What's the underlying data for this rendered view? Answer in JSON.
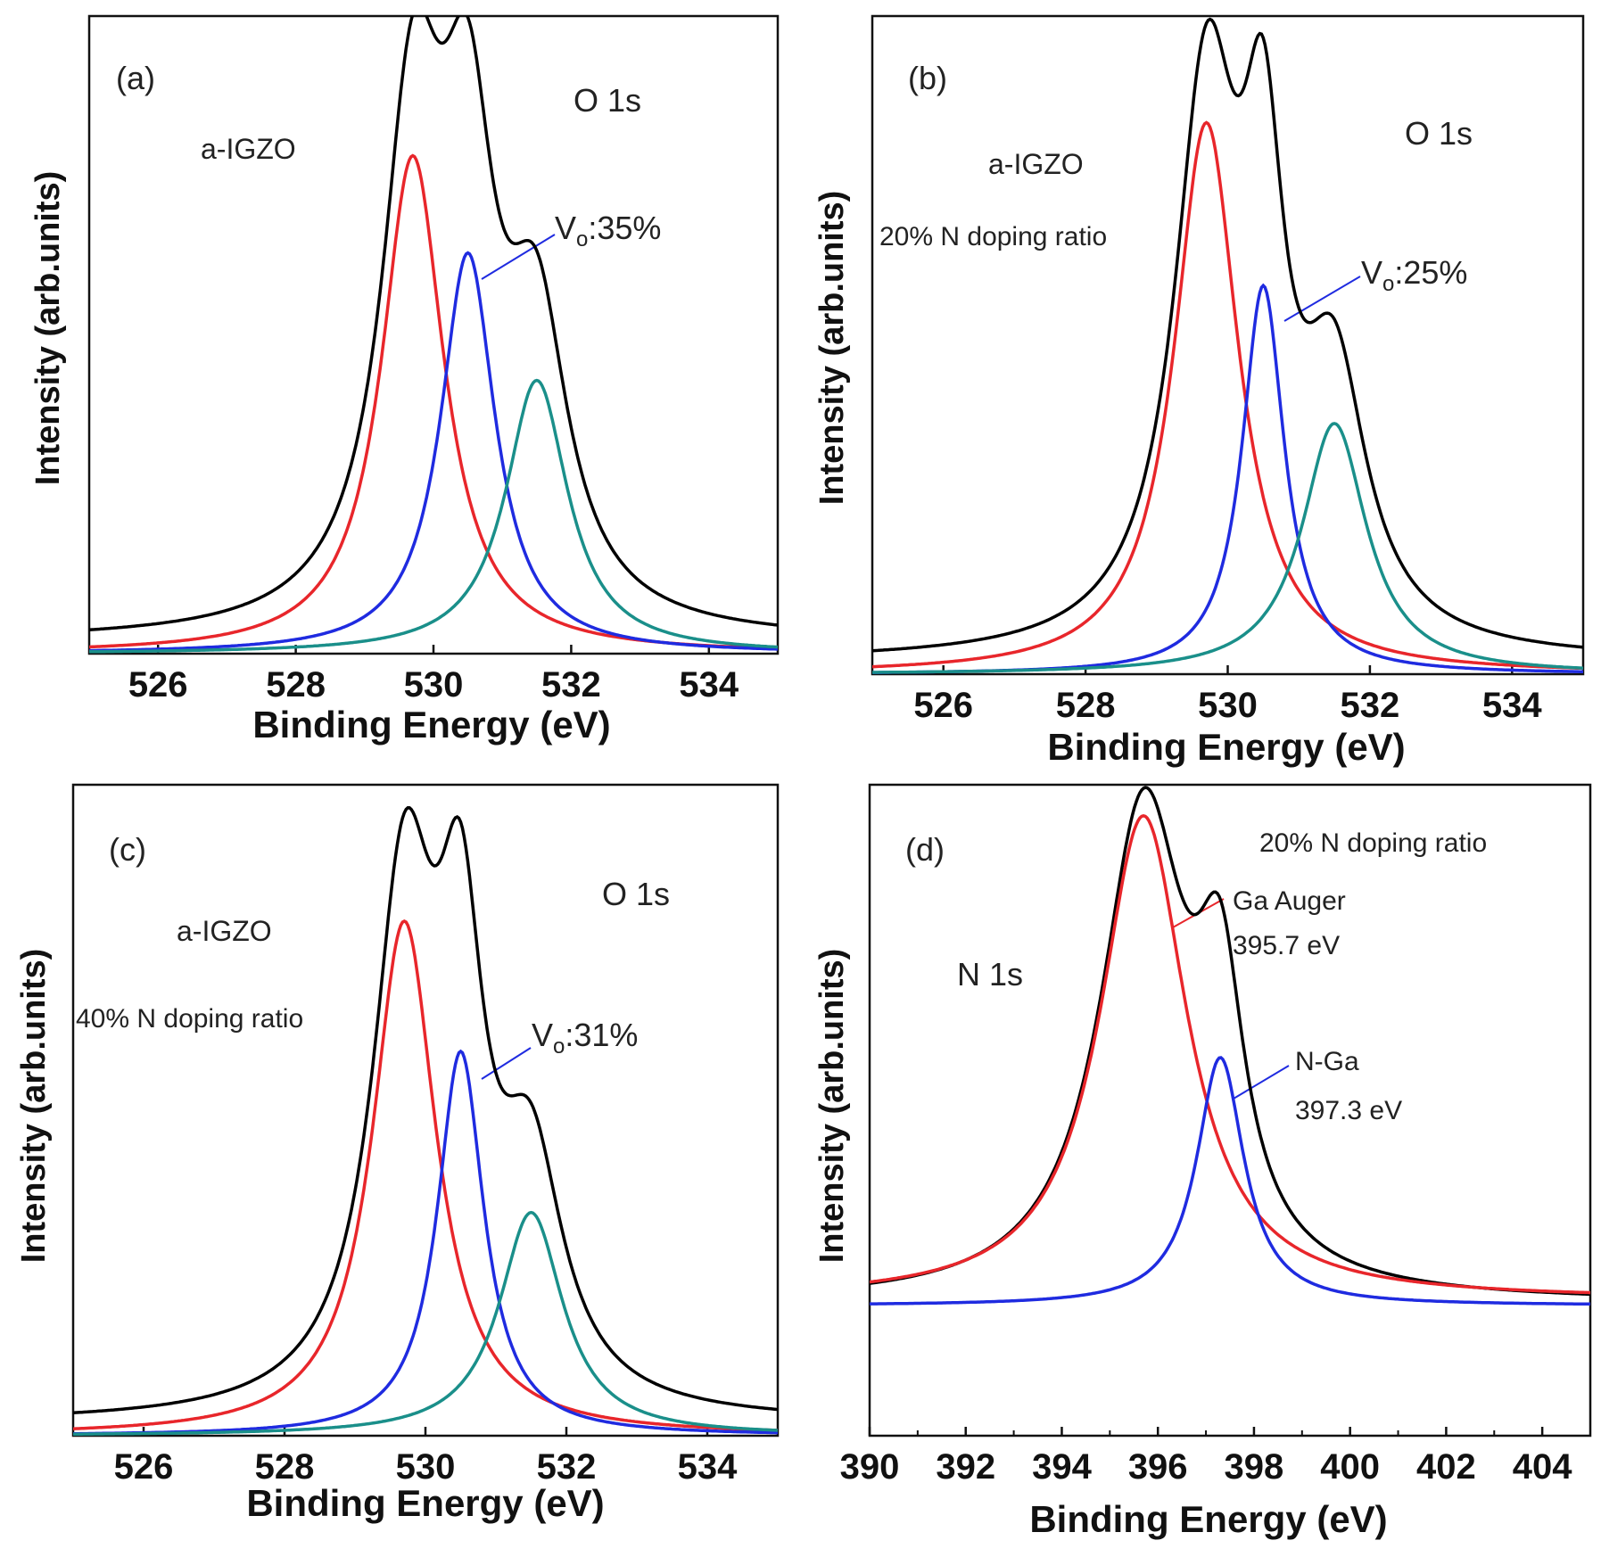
{
  "chart_data": [
    {
      "type": "line",
      "panel": "(a)",
      "xlabel": "Binding Energy (eV)",
      "ylabel": "Intensity (arb.units)",
      "xlim": [
        525,
        535
      ],
      "xticks": [
        526,
        528,
        530,
        532,
        534
      ],
      "xtick_labels": [
        "526",
        "528",
        "530",
        "532",
        "534"
      ],
      "ylim": [
        0,
        1.05
      ],
      "annotations": {
        "spectrum": "O 1s",
        "sample": "a-IGZO",
        "doping": "",
        "vo_prefix": "V",
        "vo_sub": "o",
        "vo_value": ":35%"
      },
      "series": [
        {
          "name": "total",
          "color": "#000000",
          "kind": "sum",
          "baseline": 0.02
        },
        {
          "name": "red component",
          "color": "#e8262b",
          "center": 529.7,
          "height": 0.82,
          "width": 0.55,
          "baseline": 0.0
        },
        {
          "name": "blue component",
          "color": "#1f2be0",
          "center": 530.5,
          "height": 0.66,
          "width": 0.48,
          "baseline": 0.0
        },
        {
          "name": "teal component",
          "color": "#1a8f8a",
          "center": 531.5,
          "height": 0.45,
          "width": 0.55,
          "baseline": 0.0
        }
      ]
    },
    {
      "type": "line",
      "panel": "(b)",
      "xlabel": "Binding Energy (eV)",
      "ylabel": "Intensity (arb.units)",
      "xlim": [
        525,
        535
      ],
      "xticks": [
        526,
        528,
        530,
        532,
        534
      ],
      "xtick_labels": [
        "526",
        "528",
        "530",
        "532",
        "534"
      ],
      "ylim": [
        0,
        1.05
      ],
      "annotations": {
        "spectrum": "O 1s",
        "sample": "a-IGZO",
        "doping": "20% N doping ratio",
        "vo_prefix": "V",
        "vo_sub": "o",
        "vo_value": ":25%"
      },
      "series": [
        {
          "name": "total",
          "color": "#000000",
          "kind": "sum",
          "baseline": 0.02
        },
        {
          "name": "red component",
          "color": "#e8262b",
          "center": 529.7,
          "height": 0.88,
          "width": 0.55,
          "baseline": 0.0
        },
        {
          "name": "blue component",
          "color": "#1f2be0",
          "center": 530.5,
          "height": 0.62,
          "width": 0.36,
          "baseline": 0.0
        },
        {
          "name": "teal component",
          "color": "#1a8f8a",
          "center": 531.5,
          "height": 0.4,
          "width": 0.55,
          "baseline": 0.0
        }
      ]
    },
    {
      "type": "line",
      "panel": "(c)",
      "xlabel": "Binding Energy (eV)",
      "ylabel": "Intensity (arb.units)",
      "xlim": [
        525,
        535
      ],
      "xticks": [
        526,
        528,
        530,
        532,
        534
      ],
      "xtick_labels": [
        "526",
        "528",
        "530",
        "532",
        "534"
      ],
      "ylim": [
        0,
        1.05
      ],
      "annotations": {
        "spectrum": "O 1s",
        "sample": "a-IGZO",
        "doping": "40% N doping ratio",
        "vo_prefix": "V",
        "vo_sub": "o",
        "vo_value": ":31%"
      },
      "series": [
        {
          "name": "total",
          "color": "#000000",
          "kind": "sum",
          "baseline": 0.02
        },
        {
          "name": "red component",
          "color": "#e8262b",
          "center": 529.7,
          "height": 0.83,
          "width": 0.55,
          "baseline": 0.0
        },
        {
          "name": "blue component",
          "color": "#1f2be0",
          "center": 530.5,
          "height": 0.62,
          "width": 0.4,
          "baseline": 0.0
        },
        {
          "name": "teal component",
          "color": "#1a8f8a",
          "center": 531.5,
          "height": 0.36,
          "width": 0.55,
          "baseline": 0.0
        }
      ]
    },
    {
      "type": "line",
      "panel": "(d)",
      "xlabel": "Binding Energy (eV)",
      "ylabel": "Intensity (arb.units)",
      "xlim": [
        390,
        405
      ],
      "xticks": [
        390,
        392,
        394,
        396,
        398,
        400,
        402,
        404
      ],
      "xtick_labels": [
        "390",
        "392",
        "394",
        "396",
        "398",
        "400",
        "402",
        "404"
      ],
      "ylim": [
        0,
        1.05
      ],
      "annotations": {
        "spectrum": "N 1s",
        "doping": "20% N doping ratio",
        "ga_auger": "Ga Auger",
        "ga_auger_energy": "395.7 eV",
        "n_ga": "N-Ga",
        "n_ga_energy": "397.3 eV"
      },
      "series": [
        {
          "name": "total",
          "color": "#000000",
          "kind": "sum",
          "baseline": 0.0
        },
        {
          "name": "Ga Auger",
          "color": "#e8262b",
          "center": 395.7,
          "height": 0.78,
          "width": 1.1,
          "baseline": 0.22
        },
        {
          "name": "N-Ga",
          "color": "#1f2be0",
          "center": 397.3,
          "height": 0.4,
          "width": 0.6,
          "baseline": 0.21
        }
      ]
    }
  ]
}
